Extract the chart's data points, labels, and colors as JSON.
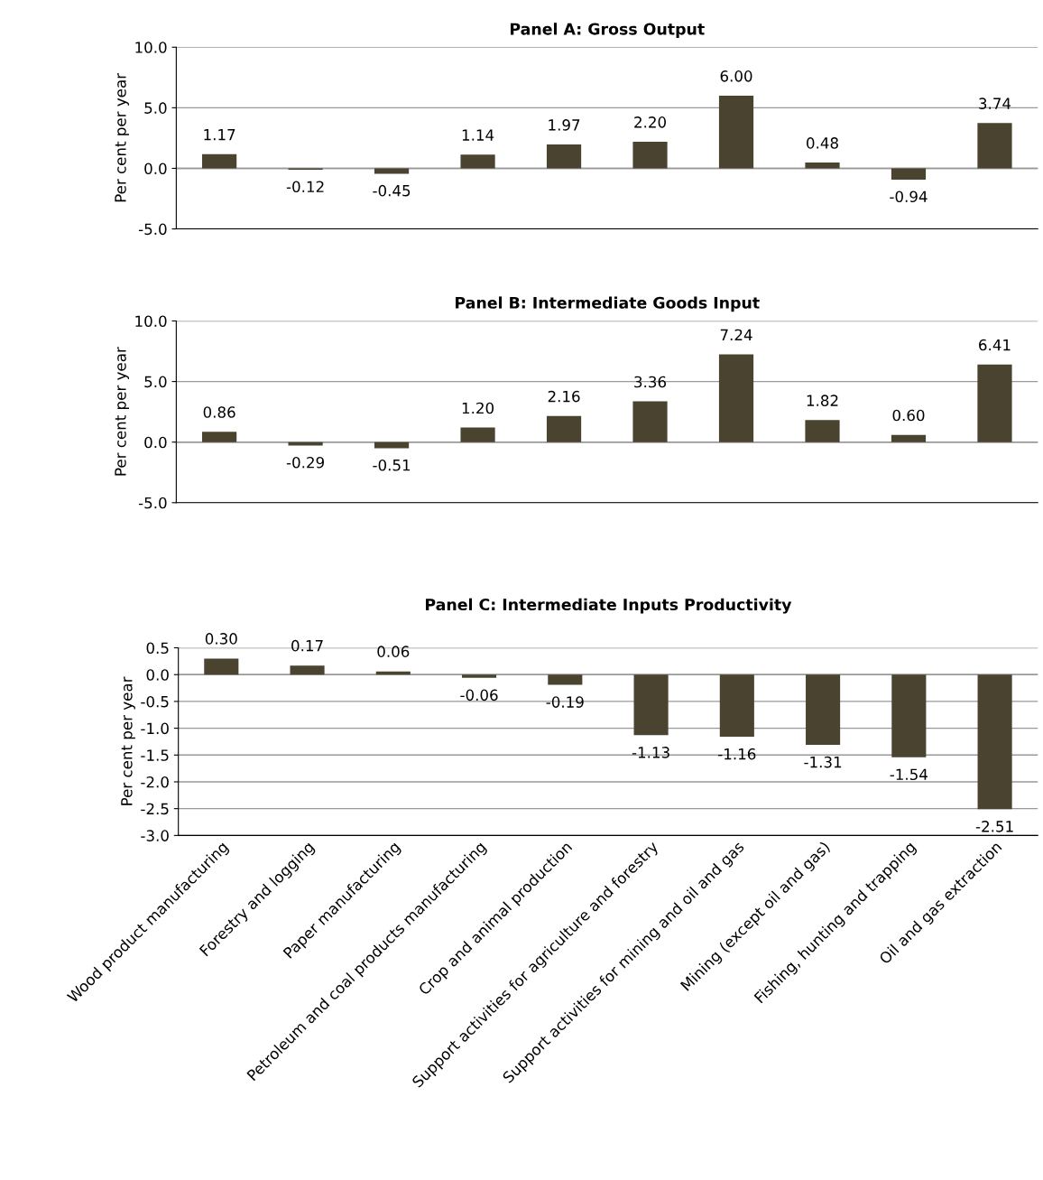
{
  "chart_data": [
    {
      "type": "bar",
      "title": "Panel A: Gross Output",
      "ylabel": "Per cent per year",
      "categories": [
        null,
        null,
        null,
        null,
        null,
        null,
        null,
        null,
        null,
        null
      ],
      "values": [
        1.17,
        -0.12,
        -0.45,
        1.14,
        1.97,
        2.2,
        6.0,
        0.48,
        -0.94,
        3.74
      ],
      "value_labels": [
        "1.17",
        "-0.12",
        "-0.45",
        "1.14",
        "1.97",
        "2.20",
        "6.00",
        "0.48",
        "-0.94",
        "3.74"
      ],
      "color": "#4a4330",
      "ylim": [
        -5,
        10
      ],
      "yticks": [
        {
          "value": -5,
          "label": "-5.0"
        },
        {
          "value": 0,
          "label": "0.0"
        },
        {
          "value": 5,
          "label": "5.0"
        },
        {
          "value": 10,
          "label": "10.0"
        }
      ],
      "grid": "y"
    },
    {
      "type": "bar",
      "title": "Panel B: Intermediate Goods Input",
      "ylabel": "Per cent per year",
      "categories": [
        null,
        null,
        null,
        null,
        null,
        null,
        null,
        null,
        null,
        null
      ],
      "values": [
        0.86,
        -0.29,
        -0.51,
        1.2,
        2.16,
        3.36,
        7.24,
        1.82,
        0.6,
        6.41
      ],
      "value_labels": [
        "0.86",
        "-0.29",
        "-0.51",
        "1.20",
        "2.16",
        "3.36",
        "7.24",
        "1.82",
        "0.60",
        "6.41"
      ],
      "color": "#4a4330",
      "ylim": [
        -5,
        10
      ],
      "yticks": [
        {
          "value": -5,
          "label": "-5.0"
        },
        {
          "value": 0,
          "label": "0.0"
        },
        {
          "value": 5,
          "label": "5.0"
        },
        {
          "value": 10,
          "label": "10.0"
        }
      ],
      "grid": "y"
    },
    {
      "type": "bar",
      "title": "Panel C: Intermediate Inputs Productivity",
      "ylabel": "Per cent per year",
      "categories": [
        "Wood product manufacturing",
        "Forestry and logging",
        "Paper manufacturing",
        "Petroleum and coal products manufacturing",
        "Crop and animal production",
        "Support activities for agriculture and forestry",
        "Support activities for mining and oil and gas",
        "Mining (except oil and gas)",
        "Fishing, hunting and trapping",
        "Oil and gas extraction"
      ],
      "values": [
        0.3,
        0.17,
        0.06,
        -0.06,
        -0.19,
        -1.13,
        -1.16,
        -1.31,
        -1.54,
        -2.51
      ],
      "value_labels": [
        "0.30",
        "0.17",
        "0.06",
        "-0.06",
        "-0.19",
        "-1.13",
        "-1.16",
        "-1.31",
        "-1.54",
        "-2.51"
      ],
      "color": "#4a4330",
      "ylim": [
        -3,
        0.5
      ],
      "yticks": [
        {
          "value": -3,
          "label": "-3.0"
        },
        {
          "value": -2.5,
          "label": "-2.5"
        },
        {
          "value": -2,
          "label": "-2.0"
        },
        {
          "value": -1.5,
          "label": "-1.5"
        },
        {
          "value": -1,
          "label": "-1.0"
        },
        {
          "value": -0.5,
          "label": "-0.5"
        },
        {
          "value": 0,
          "label": "0.0"
        },
        {
          "value": 0.5,
          "label": "0.5"
        }
      ],
      "grid": "y"
    }
  ]
}
